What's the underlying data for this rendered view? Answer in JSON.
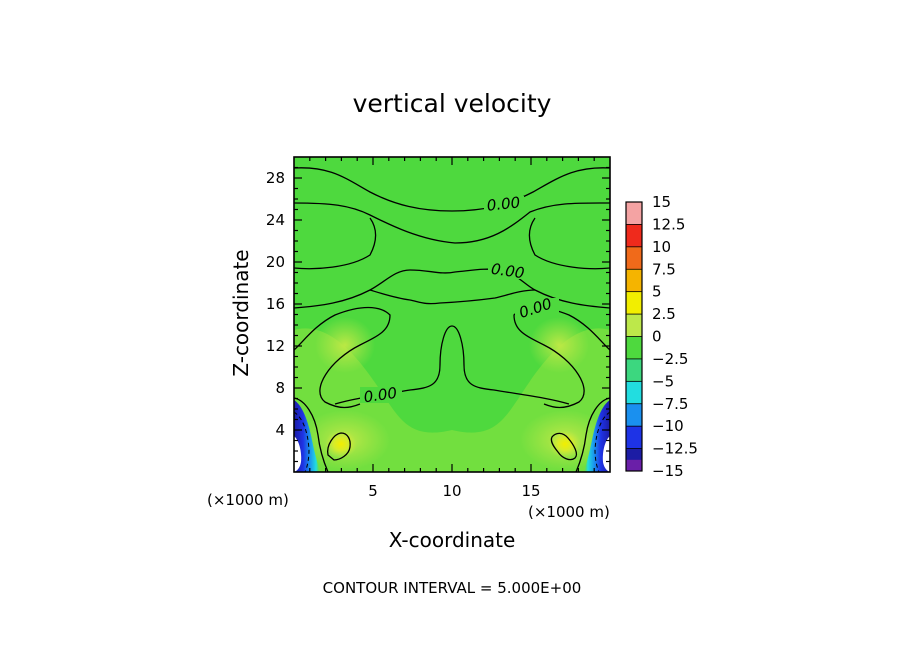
{
  "chart_data": {
    "type": "heatmap",
    "title": "vertical velocity",
    "xlabel": "X-coordinate",
    "ylabel": "Z-coordinate",
    "x_unit": "(×1000 m)",
    "y_unit": "(×1000 m)",
    "xlim": [
      0,
      20
    ],
    "ylim": [
      0,
      30
    ],
    "x_ticks": [
      5,
      10,
      15
    ],
    "y_ticks": [
      4,
      8,
      12,
      16,
      20,
      24,
      28
    ],
    "colorbar": {
      "levels": [
        15,
        12.5,
        10,
        7.5,
        5,
        2.5,
        0,
        -2.5,
        -5,
        -7.5,
        -10,
        -12.5,
        -15
      ],
      "level_labels": [
        "15",
        "12.5",
        "10",
        "7.5",
        "5",
        "2.5",
        "0",
        "−2.5",
        "−5",
        "−7.5",
        "−10",
        "−12.5",
        "−15"
      ],
      "colors": [
        "#f4a3a3",
        "#ef2a1c",
        "#f06a1a",
        "#f5b400",
        "#f2ee00",
        "#bde84a",
        "#4ed93e",
        "#3cd77f",
        "#22dde0",
        "#1a90ef",
        "#1e33e6",
        "#1c1ca4",
        "#6a1fa8"
      ]
    },
    "contour_labels": [
      "0.00",
      "0.00",
      "0.00",
      "0.00"
    ],
    "contour_interval_text": "CONTOUR INTERVAL = 5.000E+00",
    "grid": false
  }
}
